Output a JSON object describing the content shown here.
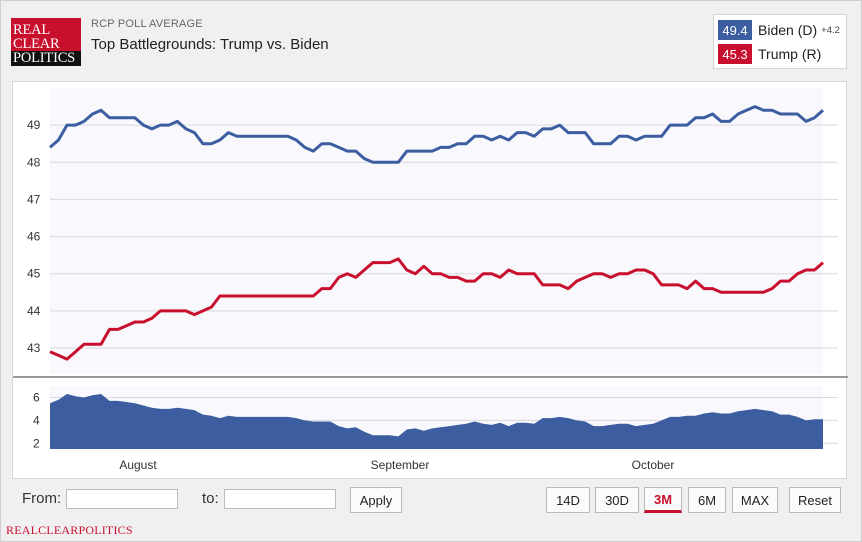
{
  "header": {
    "logo_lines": [
      "REAL",
      "CLEAR",
      "POLITICS"
    ],
    "kicker": "RCP POLL AVERAGE",
    "title": "Top Battlegrounds: Trump vs. Biden"
  },
  "legend": {
    "biden": {
      "value": "49.4",
      "name": "Biden (D)",
      "spread": "+4.2",
      "color": "#3c5ea0"
    },
    "trump": {
      "value": "45.3",
      "name": "Trump (R)",
      "color": "#c8102e"
    }
  },
  "controls": {
    "from_label": "From:",
    "to_label": "to:",
    "from_value": "",
    "to_value": "",
    "apply_label": "Apply",
    "ranges": [
      "14D",
      "30D",
      "3M",
      "6M",
      "MAX"
    ],
    "active_range": "3M",
    "reset_label": "Reset"
  },
  "footer": {
    "brand": "REALCLEARPOLITICS"
  },
  "chart_data": {
    "type": "line",
    "title": "Top Battlegrounds: Trump vs. Biden",
    "x_labels": [
      "August",
      "September",
      "October"
    ],
    "main_axis": {
      "ylim": [
        42.3,
        50.0
      ],
      "yticks": [
        43,
        44,
        45,
        46,
        47,
        48,
        49
      ]
    },
    "series": [
      {
        "name": "Biden (D)",
        "color": "#3c5ea0",
        "values": [
          48.4,
          48.6,
          49.0,
          49.0,
          49.1,
          49.3,
          49.4,
          49.2,
          49.2,
          49.2,
          49.2,
          49.0,
          48.9,
          49.0,
          49.0,
          49.1,
          48.9,
          48.8,
          48.5,
          48.5,
          48.6,
          48.8,
          48.7,
          48.7,
          48.7,
          48.7,
          48.7,
          48.7,
          48.7,
          48.6,
          48.4,
          48.3,
          48.5,
          48.5,
          48.4,
          48.3,
          48.3,
          48.1,
          48.0,
          48.0,
          48.0,
          48.0,
          48.3,
          48.3,
          48.3,
          48.3,
          48.4,
          48.4,
          48.5,
          48.5,
          48.7,
          48.7,
          48.6,
          48.7,
          48.6,
          48.8,
          48.8,
          48.7,
          48.9,
          48.9,
          49.0,
          48.8,
          48.8,
          48.8,
          48.5,
          48.5,
          48.5,
          48.7,
          48.7,
          48.6,
          48.7,
          48.7,
          48.7,
          49.0,
          49.0,
          49.0,
          49.2,
          49.2,
          49.3,
          49.1,
          49.1,
          49.3,
          49.4,
          49.5,
          49.4,
          49.4,
          49.3,
          49.3,
          49.3,
          49.1,
          49.2,
          49.4
        ]
      },
      {
        "name": "Trump (R)",
        "color": "#c8102e",
        "values": [
          42.9,
          42.8,
          42.7,
          42.9,
          43.1,
          43.1,
          43.1,
          43.5,
          43.5,
          43.6,
          43.7,
          43.7,
          43.8,
          44.0,
          44.0,
          44.0,
          44.0,
          43.9,
          44.0,
          44.1,
          44.4,
          44.4,
          44.4,
          44.4,
          44.4,
          44.4,
          44.4,
          44.4,
          44.4,
          44.4,
          44.4,
          44.4,
          44.6,
          44.6,
          44.9,
          45.0,
          44.9,
          45.1,
          45.3,
          45.3,
          45.3,
          45.4,
          45.1,
          45.0,
          45.2,
          45.0,
          45.0,
          44.9,
          44.9,
          44.8,
          44.8,
          45.0,
          45.0,
          44.9,
          45.1,
          45.0,
          45.0,
          45.0,
          44.7,
          44.7,
          44.7,
          44.6,
          44.8,
          44.9,
          45.0,
          45.0,
          44.9,
          45.0,
          45.0,
          45.1,
          45.1,
          45.0,
          44.7,
          44.7,
          44.7,
          44.6,
          44.8,
          44.6,
          44.6,
          44.5,
          44.5,
          44.5,
          44.5,
          44.5,
          44.5,
          44.6,
          44.8,
          44.8,
          45.0,
          45.1,
          45.1,
          45.3
        ]
      }
    ],
    "spread_axis": {
      "ylim": [
        1.5,
        7.0
      ],
      "yticks": [
        2,
        4,
        6
      ]
    },
    "spread": {
      "name": "Spread",
      "color": "#3c5ea0",
      "values": [
        5.5,
        5.8,
        6.3,
        6.1,
        6.0,
        6.2,
        6.3,
        5.7,
        5.7,
        5.6,
        5.5,
        5.3,
        5.1,
        5.0,
        5.0,
        5.1,
        5.0,
        4.9,
        4.5,
        4.4,
        4.2,
        4.4,
        4.3,
        4.3,
        4.3,
        4.3,
        4.3,
        4.3,
        4.3,
        4.2,
        4.0,
        3.9,
        3.9,
        3.9,
        3.5,
        3.3,
        3.4,
        3.0,
        2.7,
        2.7,
        2.7,
        2.6,
        3.2,
        3.3,
        3.1,
        3.3,
        3.4,
        3.5,
        3.6,
        3.7,
        3.9,
        3.7,
        3.6,
        3.8,
        3.5,
        3.8,
        3.8,
        3.7,
        4.2,
        4.2,
        4.3,
        4.2,
        4.0,
        3.9,
        3.5,
        3.5,
        3.6,
        3.7,
        3.7,
        3.5,
        3.6,
        3.7,
        4.0,
        4.3,
        4.3,
        4.4,
        4.4,
        4.6,
        4.7,
        4.6,
        4.6,
        4.8,
        4.9,
        5.0,
        4.9,
        4.8,
        4.5,
        4.5,
        4.3,
        4.0,
        4.1,
        4.1
      ]
    }
  }
}
